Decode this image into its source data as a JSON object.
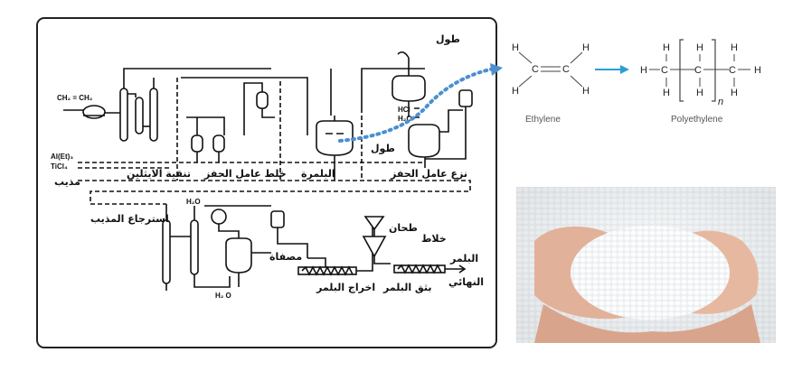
{
  "flowsheet": {
    "labels": {
      "toluene_top": "طول",
      "toluene_mid": "طول",
      "ethylene_feed": "CH₂ = CH₂",
      "catalyst_1": "Al(Et)₃",
      "catalyst_2": "TiCl₄",
      "solvent": "مذيب",
      "ethylene_purification": "تنقية الايثلين",
      "catalyst_mixing": "خلط عامل الحفز",
      "polymerization": "البلمرة",
      "catalyst_removal": "نزع عامل الحفز",
      "hcl": "HCl",
      "water_1": "H₂O",
      "water_2": "H₂O",
      "water_3": "H₂ O",
      "solvent_recovery": "استرجاع المذيب",
      "filter": "مصفاة",
      "polymer_extraction": "اخراج البلمر",
      "mill": "طحان",
      "mixer": "خلاط",
      "polymer_extrusion": "بثق البلمر",
      "final_polymer_1": "البلمر",
      "final_polymer_2": "النهائي"
    }
  },
  "reaction": {
    "ethylene_caption": "Ethylene",
    "polyethylene_caption": "Polyethylene",
    "atom_h": "H",
    "atom_c": "C",
    "subscript_n": "n"
  },
  "photo": {
    "colors": {
      "skin": "#e7b8a0",
      "pellet": "#eef2f4",
      "background": "#d9dde0"
    }
  },
  "colors": {
    "arrow_blue": "#2a9fd6",
    "dotted_blue": "#4a90d0",
    "frame": "#222222"
  }
}
